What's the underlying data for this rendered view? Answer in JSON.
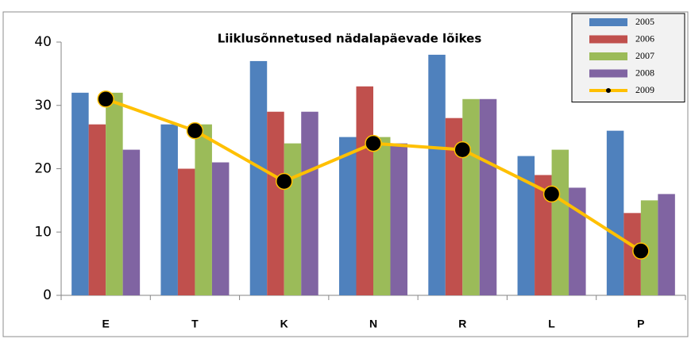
{
  "chart_data": {
    "type": "bar",
    "title": "Liiklusõnnetused nädalapäevade lõikes",
    "categories": [
      "E",
      "T",
      "K",
      "N",
      "R",
      "L",
      "P"
    ],
    "series": [
      {
        "name": "2005",
        "color": "#4f81bd",
        "values": [
          32,
          27,
          37,
          25,
          38,
          22,
          26
        ]
      },
      {
        "name": "2006",
        "color": "#c0504d",
        "values": [
          27,
          20,
          29,
          33,
          28,
          19,
          13
        ]
      },
      {
        "name": "2007",
        "color": "#9bbb59",
        "values": [
          32,
          27,
          24,
          25,
          31,
          23,
          15
        ]
      },
      {
        "name": "2008",
        "color": "#8064a2",
        "values": [
          23,
          21,
          29,
          24,
          31,
          17,
          16
        ]
      },
      {
        "name": "2009",
        "color": "#ffc000",
        "type": "line",
        "values": [
          31,
          26,
          18,
          24,
          23,
          16,
          7
        ]
      }
    ],
    "ylim": [
      0,
      40
    ],
    "yticks": [
      0,
      10,
      20,
      30,
      40
    ],
    "grid": false,
    "legend": "top-right"
  }
}
